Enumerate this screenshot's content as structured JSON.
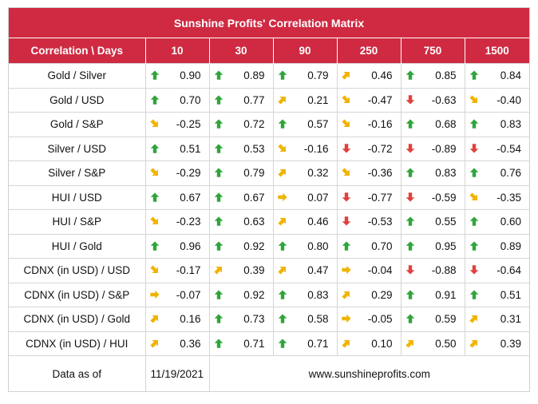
{
  "title": "Sunshine Profits' Correlation Matrix",
  "header": {
    "label": "Correlation \\ Days",
    "columns": [
      "10",
      "30",
      "90",
      "250",
      "750",
      "1500"
    ]
  },
  "colors": {
    "header_bg": "#cf2a42",
    "up": "#2fa53a",
    "down": "#e0413d",
    "diag": "#f0b400",
    "flat": "#f0b400"
  },
  "rows": [
    {
      "label": "Gold / Silver",
      "cells": [
        {
          "v": "0.90",
          "a": "up"
        },
        {
          "v": "0.89",
          "a": "up"
        },
        {
          "v": "0.79",
          "a": "up"
        },
        {
          "v": "0.46",
          "a": "up-right"
        },
        {
          "v": "0.85",
          "a": "up"
        },
        {
          "v": "0.84",
          "a": "up"
        }
      ]
    },
    {
      "label": "Gold / USD",
      "cells": [
        {
          "v": "0.70",
          "a": "up"
        },
        {
          "v": "0.77",
          "a": "up"
        },
        {
          "v": "0.21",
          "a": "up-right"
        },
        {
          "v": "-0.47",
          "a": "down-right"
        },
        {
          "v": "-0.63",
          "a": "down"
        },
        {
          "v": "-0.40",
          "a": "down-right"
        }
      ]
    },
    {
      "label": "Gold / S&P",
      "cells": [
        {
          "v": "-0.25",
          "a": "down-right"
        },
        {
          "v": "0.72",
          "a": "up"
        },
        {
          "v": "0.57",
          "a": "up"
        },
        {
          "v": "-0.16",
          "a": "down-right"
        },
        {
          "v": "0.68",
          "a": "up"
        },
        {
          "v": "0.83",
          "a": "up"
        }
      ]
    },
    {
      "label": "Silver / USD",
      "cells": [
        {
          "v": "0.51",
          "a": "up"
        },
        {
          "v": "0.53",
          "a": "up"
        },
        {
          "v": "-0.16",
          "a": "down-right"
        },
        {
          "v": "-0.72",
          "a": "down"
        },
        {
          "v": "-0.89",
          "a": "down"
        },
        {
          "v": "-0.54",
          "a": "down"
        }
      ]
    },
    {
      "label": "Silver / S&P",
      "cells": [
        {
          "v": "-0.29",
          "a": "down-right"
        },
        {
          "v": "0.79",
          "a": "up"
        },
        {
          "v": "0.32",
          "a": "up-right"
        },
        {
          "v": "-0.36",
          "a": "down-right"
        },
        {
          "v": "0.83",
          "a": "up"
        },
        {
          "v": "0.76",
          "a": "up"
        }
      ]
    },
    {
      "label": "HUI / USD",
      "cells": [
        {
          "v": "0.67",
          "a": "up"
        },
        {
          "v": "0.67",
          "a": "up"
        },
        {
          "v": "0.07",
          "a": "right"
        },
        {
          "v": "-0.77",
          "a": "down"
        },
        {
          "v": "-0.59",
          "a": "down"
        },
        {
          "v": "-0.35",
          "a": "down-right"
        }
      ]
    },
    {
      "label": "HUI / S&P",
      "cells": [
        {
          "v": "-0.23",
          "a": "down-right"
        },
        {
          "v": "0.63",
          "a": "up"
        },
        {
          "v": "0.46",
          "a": "up-right"
        },
        {
          "v": "-0.53",
          "a": "down"
        },
        {
          "v": "0.55",
          "a": "up"
        },
        {
          "v": "0.60",
          "a": "up"
        }
      ]
    },
    {
      "label": "HUI / Gold",
      "cells": [
        {
          "v": "0.96",
          "a": "up"
        },
        {
          "v": "0.92",
          "a": "up"
        },
        {
          "v": "0.80",
          "a": "up"
        },
        {
          "v": "0.70",
          "a": "up"
        },
        {
          "v": "0.95",
          "a": "up"
        },
        {
          "v": "0.89",
          "a": "up"
        }
      ]
    },
    {
      "label": "CDNX (in USD) / USD",
      "cells": [
        {
          "v": "-0.17",
          "a": "down-right"
        },
        {
          "v": "0.39",
          "a": "up-right"
        },
        {
          "v": "0.47",
          "a": "up-right"
        },
        {
          "v": "-0.04",
          "a": "right"
        },
        {
          "v": "-0.88",
          "a": "down"
        },
        {
          "v": "-0.64",
          "a": "down"
        }
      ]
    },
    {
      "label": "CDNX (in USD) / S&P",
      "cells": [
        {
          "v": "-0.07",
          "a": "right"
        },
        {
          "v": "0.92",
          "a": "up"
        },
        {
          "v": "0.83",
          "a": "up"
        },
        {
          "v": "0.29",
          "a": "up-right"
        },
        {
          "v": "0.91",
          "a": "up"
        },
        {
          "v": "0.51",
          "a": "up"
        }
      ]
    },
    {
      "label": "CDNX (in USD) / Gold",
      "cells": [
        {
          "v": "0.16",
          "a": "up-right"
        },
        {
          "v": "0.73",
          "a": "up"
        },
        {
          "v": "0.58",
          "a": "up"
        },
        {
          "v": "-0.05",
          "a": "right"
        },
        {
          "v": "0.59",
          "a": "up"
        },
        {
          "v": "0.31",
          "a": "up-right"
        }
      ]
    },
    {
      "label": "CDNX (in USD) / HUI",
      "cells": [
        {
          "v": "0.36",
          "a": "up-right"
        },
        {
          "v": "0.71",
          "a": "up"
        },
        {
          "v": "0.71",
          "a": "up"
        },
        {
          "v": "0.10",
          "a": "up-right"
        },
        {
          "v": "0.50",
          "a": "up-right"
        },
        {
          "v": "0.39",
          "a": "up-right"
        }
      ]
    }
  ],
  "footer": {
    "label": "Data as of",
    "date": "11/19/2021",
    "site": "www.sunshineprofits.com"
  }
}
